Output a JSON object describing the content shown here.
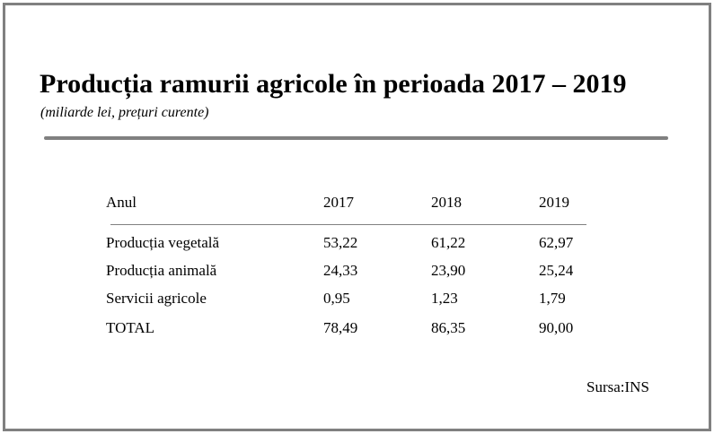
{
  "chart_data": {
    "type": "table",
    "title": "Producția ramurii agricole în perioada 2017 – 2019",
    "subtitle": "(miliarde lei, prețuri curente)",
    "columns": [
      "Anul",
      "2017",
      "2018",
      "2019"
    ],
    "rows": [
      {
        "label": "Producția vegetală",
        "values": [
          "53,22",
          "61,22",
          "62,97"
        ]
      },
      {
        "label": "Producția animală",
        "values": [
          "24,33",
          "23,90",
          "25,24"
        ]
      },
      {
        "label": "Servicii agricole",
        "values": [
          "0,95",
          "1,23",
          "1,79"
        ]
      },
      {
        "label": "TOTAL",
        "values": [
          "78,49",
          "86,35",
          "90,00"
        ]
      }
    ],
    "source": "Sursa:INS"
  },
  "colors": {
    "frame": "#808080",
    "rule": "#808080",
    "text": "#000000"
  }
}
